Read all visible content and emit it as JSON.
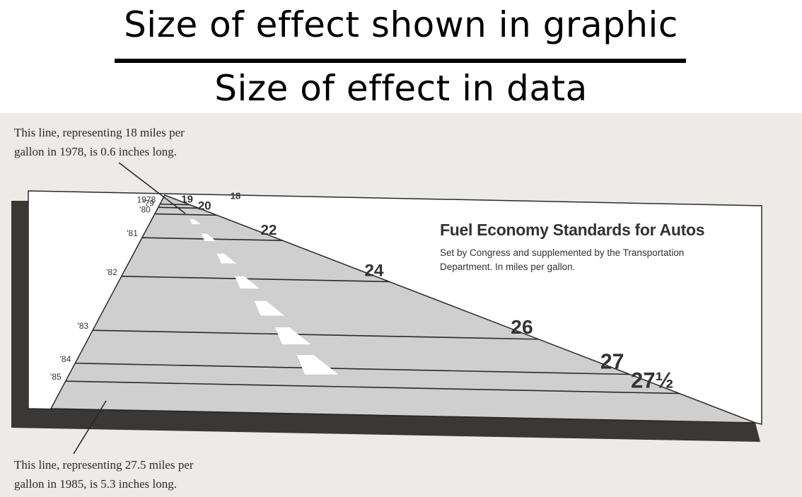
{
  "header": {
    "numerator": "Size of effect shown in graphic",
    "denominator": "Size of effect in data"
  },
  "annotations": {
    "top": "This line, representing 18 miles per\ngallon in 1978, is 0.6 inches long.",
    "bottom": "This line, representing 27.5 miles per\ngallon in 1985, is 5.3 inches long."
  },
  "chart_data": {
    "type": "bar",
    "title": "Fuel Economy Standards for Autos",
    "subtitle": "Set by Congress and supplemented by the Transportation Department. In miles per gallon.",
    "xlabel": "",
    "ylabel": "",
    "categories": [
      "1978",
      "'79",
      "'80",
      "'81",
      "'82",
      "'83",
      "'84",
      "'85"
    ],
    "values": [
      18,
      19,
      20,
      22,
      24,
      26,
      27,
      27.5
    ],
    "value_labels": [
      "18",
      "19",
      "20",
      "22",
      "24",
      "26",
      "27",
      "27½"
    ],
    "colors": {
      "road": "#cfcfcf",
      "lines": "#2a2a2a",
      "dashes": "#ffffff",
      "shadow": "#3a3836",
      "frame": "#ffffff"
    }
  }
}
